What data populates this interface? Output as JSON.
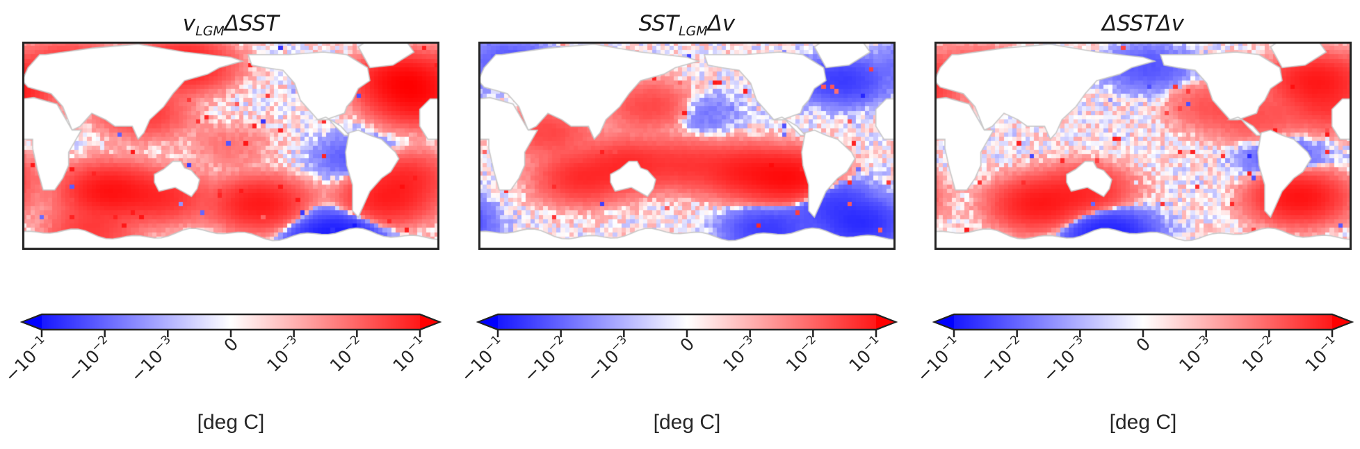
{
  "chart_data": [
    {
      "type": "heatmap",
      "title": {
        "var": "v",
        "sub": "LGM",
        "op": "ΔSST"
      },
      "colormap": "bwr",
      "colorbar": {
        "scale": "symlog",
        "range": [
          -0.1,
          0.1
        ],
        "extend": "both",
        "ticks": [
          "-10^-1",
          "-10^-2",
          "-10^-3",
          "0",
          "10^-3",
          "10^-2",
          "10^-1"
        ],
        "label": "[deg C]"
      },
      "regions": [
        {
          "lon": 40,
          "lat": 60,
          "value": 0.03
        },
        {
          "lon": 105,
          "lat": 25,
          "value": 0.02
        },
        {
          "lon": 140,
          "lat": 62,
          "value": 0.05
        },
        {
          "lon": 330,
          "lat": 50,
          "value": 0.08
        },
        {
          "lon": 340,
          "lat": 35,
          "value": 0.05
        },
        {
          "lon": 75,
          "lat": -35,
          "value": 0.06
        },
        {
          "lon": 120,
          "lat": -40,
          "value": 0.03
        },
        {
          "lon": 205,
          "lat": -45,
          "value": 0.05
        },
        {
          "lon": 315,
          "lat": -42,
          "value": 0.04
        },
        {
          "lon": 330,
          "lat": -25,
          "value": 0.03
        },
        {
          "lon": 270,
          "lat": -70,
          "value": -0.05
        },
        {
          "lon": 290,
          "lat": -10,
          "value": -0.01
        },
        {
          "lon": 60,
          "lat": -65,
          "value": 0.02
        },
        {
          "lon": 180,
          "lat": 0,
          "value": 0.004
        }
      ]
    },
    {
      "type": "heatmap",
      "title": {
        "var": "SST",
        "sub": "LGM",
        "op": "Δv"
      },
      "colormap": "bwr",
      "colorbar": {
        "scale": "symlog",
        "range": [
          -0.1,
          0.1
        ],
        "extend": "both",
        "ticks": [
          "-10^-1",
          "-10^-2",
          "-10^-3",
          "0",
          "10^-3",
          "10^-2",
          "10^-1"
        ],
        "label": "[deg C]"
      },
      "regions": [
        {
          "lon": 270,
          "lat": -25,
          "value": 0.07
        },
        {
          "lon": 230,
          "lat": -20,
          "value": 0.04
        },
        {
          "lon": 180,
          "lat": -15,
          "value": 0.02
        },
        {
          "lon": 130,
          "lat": -15,
          "value": 0.03
        },
        {
          "lon": 90,
          "lat": -25,
          "value": 0.03
        },
        {
          "lon": 150,
          "lat": 30,
          "value": 0.015
        },
        {
          "lon": 60,
          "lat": 10,
          "value": 0.015
        },
        {
          "lon": 330,
          "lat": -60,
          "value": -0.03
        },
        {
          "lon": 250,
          "lat": -65,
          "value": -0.02
        },
        {
          "lon": 315,
          "lat": 50,
          "value": -0.02
        },
        {
          "lon": 300,
          "lat": -40,
          "value": -0.02
        },
        {
          "lon": 30,
          "lat": 65,
          "value": -0.01
        },
        {
          "lon": 190,
          "lat": 25,
          "value": -0.005
        }
      ]
    },
    {
      "type": "heatmap",
      "title": {
        "var": "",
        "sub": "",
        "op": "ΔSSTΔv"
      },
      "colormap": "bwr",
      "colorbar": {
        "scale": "symlog",
        "range": [
          -0.1,
          0.1
        ],
        "extend": "both",
        "ticks": [
          "-10^-1",
          "-10^-2",
          "-10^-3",
          "0",
          "10^-3",
          "10^-2",
          "10^-1"
        ],
        "label": "[deg C]"
      },
      "regions": [
        {
          "lon": 330,
          "lat": 50,
          "value": 0.05
        },
        {
          "lon": 315,
          "lat": -40,
          "value": 0.06
        },
        {
          "lon": 90,
          "lat": -45,
          "value": 0.05
        },
        {
          "lon": 130,
          "lat": -35,
          "value": 0.03
        },
        {
          "lon": 340,
          "lat": 30,
          "value": 0.02
        },
        {
          "lon": 280,
          "lat": 20,
          "value": 0.01
        },
        {
          "lon": 150,
          "lat": -68,
          "value": -0.04
        },
        {
          "lon": 240,
          "lat": 30,
          "value": 0.01
        },
        {
          "lon": 35,
          "lat": 60,
          "value": 0.01
        },
        {
          "lon": 185,
          "lat": 60,
          "value": -0.01
        },
        {
          "lon": 300,
          "lat": -10,
          "value": -0.01
        }
      ]
    }
  ]
}
